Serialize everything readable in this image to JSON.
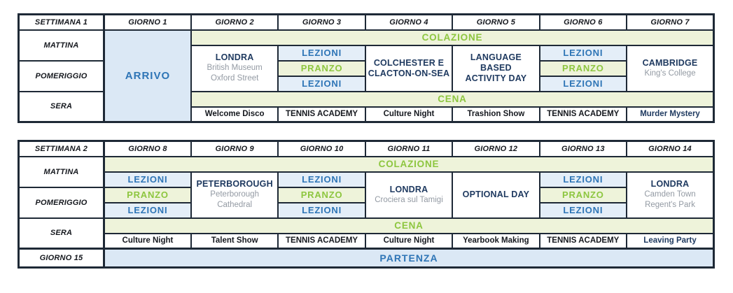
{
  "labels": {
    "week1": "SETTIMANA 1",
    "week2": "SETTIMANA 2",
    "morning": "MATTINA",
    "afternoon": "POMERIGGIO",
    "evening": "SERA",
    "day15": "GIORNO 15",
    "breakfast": "COLAZIONE",
    "lunch": "PRANZO",
    "dinner": "CENA",
    "lessons": "LEZIONI",
    "arrival": "ARRIVO",
    "departure": "PARTENZA"
  },
  "colors": {
    "border": "#1e2936",
    "blue_text": "#2e75b6",
    "lessons_bg": "#e4eef8",
    "arrival_departure_bg": "#dbe8f5",
    "meal_text": "#8dc63f",
    "meal_bg": "#eef3da",
    "excursion_title_text": "#1f3a60",
    "excursion_subtitle_text": "#939aa3",
    "header_text": "#15181e"
  },
  "week1": {
    "day_headers": [
      "GIORNO 1",
      "GIORNO 2",
      "GIORNO 3",
      "GIORNO 4",
      "GIORNO 5",
      "GIORNO 6",
      "GIORNO 7"
    ],
    "excursions": {
      "day2": {
        "title_lines": [
          "LONDRA"
        ],
        "sub_lines": [
          "British Museum",
          "Oxford Street"
        ]
      },
      "day4": {
        "title_lines": [
          "COLCHESTER E",
          "CLACTON-ON-SEA"
        ],
        "sub_lines": []
      },
      "day5": {
        "title_lines": [
          "LANGUAGE BASED",
          "ACTIVITY DAY"
        ],
        "sub_lines": []
      },
      "day7": {
        "title_lines": [
          "CAMBRIDGE"
        ],
        "sub_lines": [
          "King's College"
        ]
      }
    },
    "evening_activities": [
      "Welcome Disco",
      "TENNIS ACADEMY",
      "Culture Night",
      "Trashion Show",
      "TENNIS ACADEMY",
      "Murder Mystery"
    ]
  },
  "week2": {
    "day_headers": [
      "GIORNO 8",
      "GIORNO 9",
      "GIORNO 10",
      "GIORNO 11",
      "GIORNO 12",
      "GIORNO 13",
      "GIORNO 14"
    ],
    "excursions": {
      "day9": {
        "title_lines": [
          "PETERBOROUGH"
        ],
        "sub_lines": [
          "Peterborough",
          "Cathedral"
        ]
      },
      "day11": {
        "title_lines": [
          "LONDRA"
        ],
        "sub_lines": [
          "Crociera sul Tamigi"
        ]
      },
      "day12": {
        "title_lines": [
          "OPTIONAL DAY"
        ],
        "sub_lines": []
      },
      "day14": {
        "title_lines": [
          "LONDRA"
        ],
        "sub_lines": [
          "Camden Town",
          "Regent's Park"
        ]
      }
    },
    "evening_activities": [
      "Culture Night",
      "Talent Show",
      "TENNIS ACADEMY",
      "Culture Night",
      "Yearbook Making",
      "TENNIS ACADEMY",
      "Leaving Party"
    ]
  }
}
